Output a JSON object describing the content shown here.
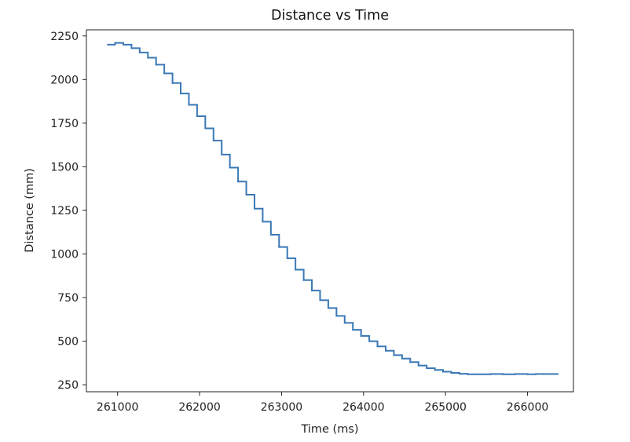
{
  "chart_data": {
    "type": "line",
    "title": "Distance vs Time",
    "xlabel": "Time (ms)",
    "ylabel": "Distance (mm)",
    "xlim": [
      260620,
      266560
    ],
    "ylim": [
      210,
      2285
    ],
    "x_ticks": [
      {
        "value": 261000,
        "label": "261000"
      },
      {
        "value": 262000,
        "label": "262000"
      },
      {
        "value": 263000,
        "label": "263000"
      },
      {
        "value": 264000,
        "label": "264000"
      },
      {
        "value": 265000,
        "label": "265000"
      },
      {
        "value": 266000,
        "label": "266000"
      }
    ],
    "y_ticks": [
      {
        "value": 250,
        "label": "250"
      },
      {
        "value": 500,
        "label": "500"
      },
      {
        "value": 750,
        "label": "750"
      },
      {
        "value": 1000,
        "label": "1000"
      },
      {
        "value": 1250,
        "label": "1250"
      },
      {
        "value": 1500,
        "label": "1500"
      },
      {
        "value": 1750,
        "label": "1750"
      },
      {
        "value": 2000,
        "label": "2000"
      },
      {
        "value": 2250,
        "label": "2250"
      }
    ],
    "grid": false,
    "legend": "none",
    "line_style": "steps",
    "series": [
      {
        "color": "#3a78b5",
        "x": [
          260880,
          260970,
          261070,
          261170,
          261270,
          261370,
          261470,
          261570,
          261670,
          261770,
          261870,
          261970,
          262070,
          262170,
          262270,
          262370,
          262470,
          262570,
          262670,
          262770,
          262870,
          262970,
          263070,
          263170,
          263270,
          263370,
          263470,
          263570,
          263670,
          263770,
          263870,
          263970,
          264070,
          264170,
          264270,
          264370,
          264470,
          264570,
          264670,
          264770,
          264870,
          264970,
          265070,
          265170,
          265270,
          265400,
          265550,
          265700,
          265850,
          266000,
          266100,
          266200,
          266370
        ],
        "y": [
          2200,
          2210,
          2200,
          2180,
          2155,
          2125,
          2085,
          2035,
          1980,
          1920,
          1855,
          1790,
          1720,
          1650,
          1570,
          1495,
          1415,
          1340,
          1260,
          1185,
          1110,
          1040,
          975,
          910,
          850,
          790,
          735,
          690,
          645,
          605,
          565,
          530,
          500,
          470,
          445,
          420,
          400,
          380,
          360,
          345,
          335,
          325,
          318,
          313,
          310,
          310,
          312,
          310,
          312,
          310,
          312,
          312,
          312
        ]
      }
    ]
  }
}
